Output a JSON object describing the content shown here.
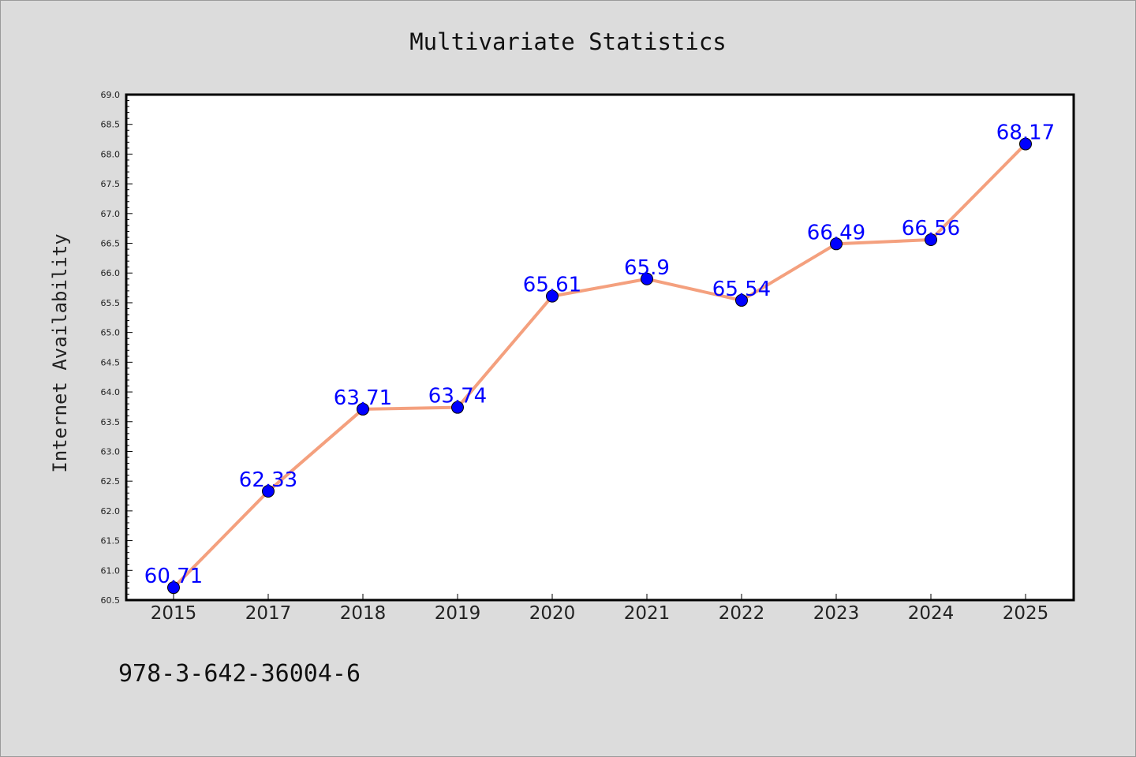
{
  "background_color": "#dcdcdc",
  "footer": {
    "text": "978-3-642-36004-6"
  },
  "chart_data": {
    "type": "line",
    "title": "Multivariate Statistics",
    "xlabel": "",
    "ylabel": "Internet Availability",
    "categories": [
      "2015",
      "2017",
      "2018",
      "2019",
      "2020",
      "2021",
      "2022",
      "2023",
      "2024",
      "2025"
    ],
    "series": [
      {
        "values": [
          60.71,
          62.33,
          63.71,
          63.74,
          65.61,
          65.9,
          65.54,
          66.49,
          66.56,
          68.17
        ],
        "line_color": "#f4a07e",
        "marker_color": "#0000ff"
      }
    ],
    "data_labels": [
      "60.71",
      "62.33",
      "63.71",
      "63.74",
      "65.61",
      "65.9",
      "65.54",
      "66.49",
      "66.56",
      "68.17"
    ],
    "ylim": [
      60.5,
      69.0
    ],
    "yticks": [
      "60.5",
      "61.0",
      "61.5",
      "62.0",
      "62.5",
      "63.0",
      "63.5",
      "64.0",
      "64.5",
      "65.0",
      "65.5",
      "66.0",
      "66.5",
      "67.0",
      "67.5",
      "68.0",
      "68.5",
      "69.0"
    ],
    "grid": false,
    "legend": "none",
    "data_label_color": "#0000ff"
  }
}
